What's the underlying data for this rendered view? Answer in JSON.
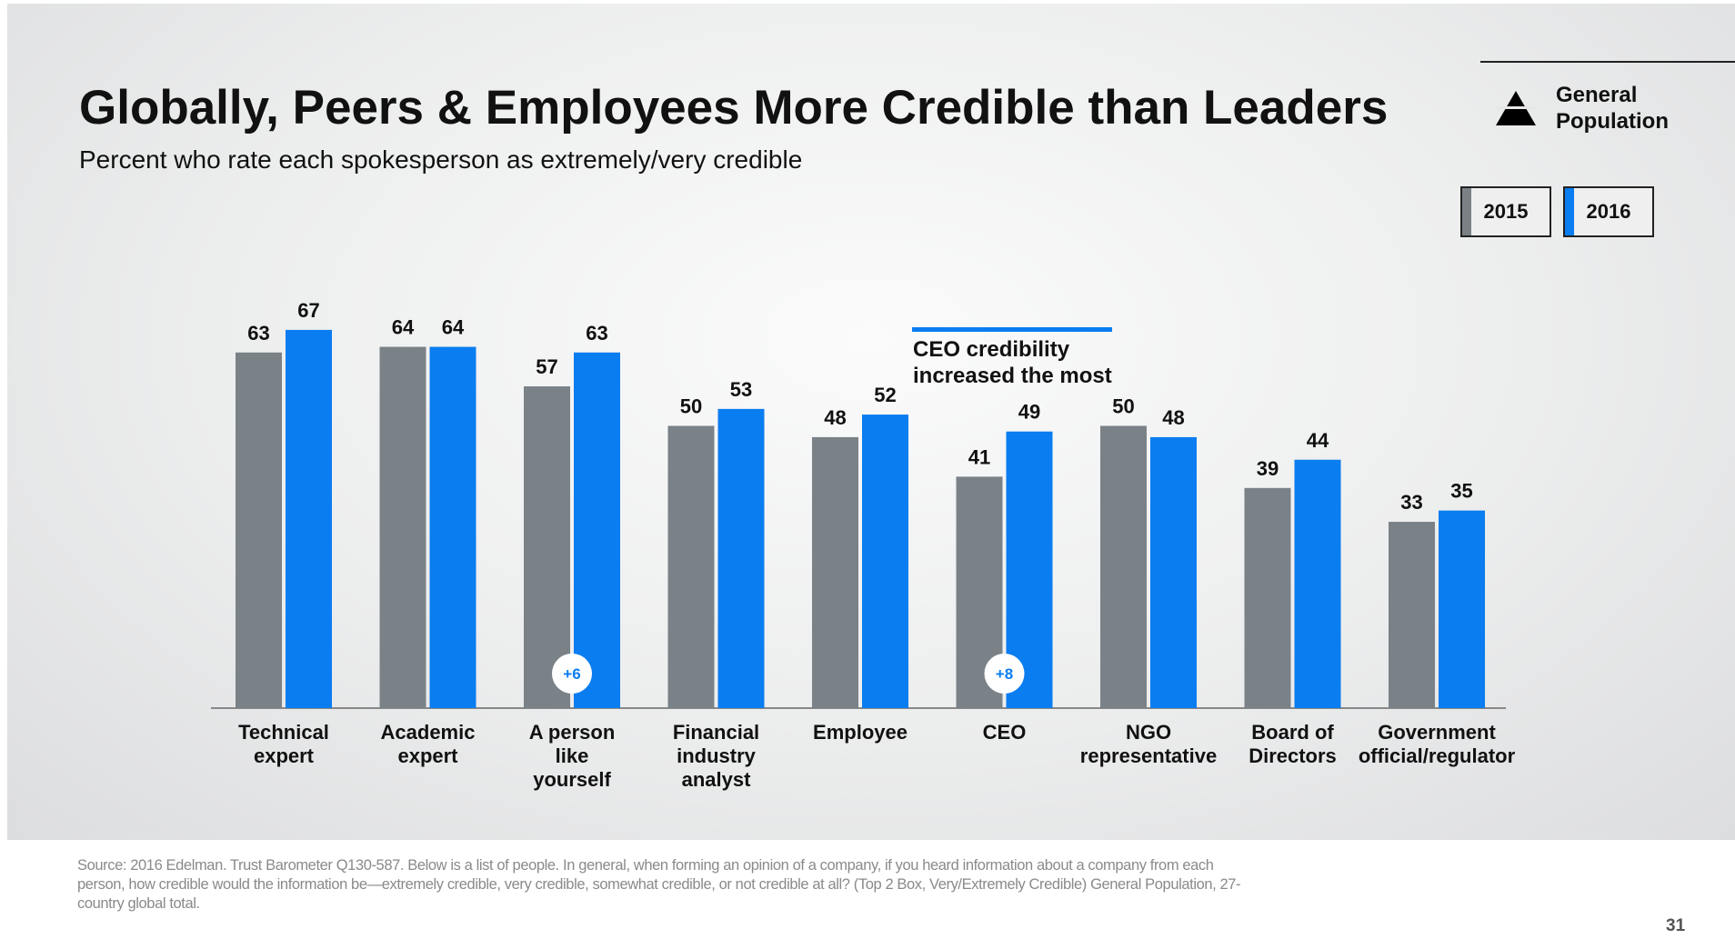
{
  "title": "Globally, Peers & Employees More Credible than Leaders",
  "subtitle": "Percent who rate each spokesperson as extremely/very credible",
  "population_label": "General Population",
  "callout": "CEO credibility increased the most",
  "source": "Source: 2016 Edelman. Trust Barometer Q130-587. Below is a list of people. In general, when forming an opinion of a company, if you heard information about a company from each person, how credible would the information be—extremely credible, very credible, somewhat credible, or not credible at all? (Top 2 Box, Very/Extremely Credible) General Population, 27-country global total.",
  "page_number": "31",
  "colors": {
    "2015": "#7a8288",
    "2016": "#0a7df0"
  },
  "chart_data": {
    "type": "bar",
    "title": "Globally, Peers & Employees More Credible than Leaders",
    "xlabel": "",
    "ylabel": "",
    "ylim": [
      0,
      70
    ],
    "legend": {
      "placement": "top-right",
      "entries": [
        "2015",
        "2016"
      ]
    },
    "categories": [
      [
        "Technical",
        "expert"
      ],
      [
        "Academic",
        "expert"
      ],
      [
        "A person",
        "like",
        "yourself"
      ],
      [
        "Financial",
        "industry",
        "analyst"
      ],
      [
        "Employee"
      ],
      [
        "CEO"
      ],
      [
        "NGO",
        "representative"
      ],
      [
        "Board of",
        "Directors"
      ],
      [
        "Government",
        "official/regulator"
      ]
    ],
    "series": [
      {
        "name": "2015",
        "values": [
          63,
          64,
          57,
          50,
          48,
          41,
          50,
          39,
          33
        ]
      },
      {
        "name": "2016",
        "values": [
          67,
          64,
          63,
          53,
          52,
          49,
          48,
          44,
          35
        ]
      }
    ],
    "annotations": [
      {
        "category_index": 2,
        "text": "+6"
      },
      {
        "category_index": 5,
        "text": "+8"
      }
    ]
  }
}
